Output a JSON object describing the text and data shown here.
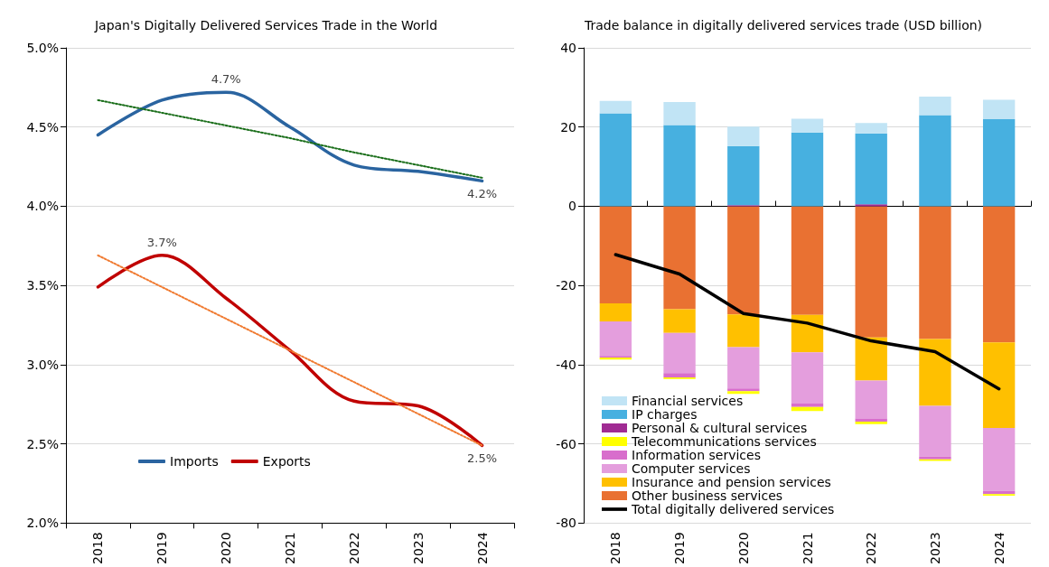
{
  "chart_data": [
    {
      "type": "line",
      "title": "Japan's Digitally Delivered Services Trade in the World",
      "categories": [
        "2018",
        "2019",
        "2020",
        "2021",
        "2022",
        "2023",
        "2024"
      ],
      "series": [
        {
          "name": "Imports",
          "color": "#2a64a0",
          "values": [
            4.45,
            4.67,
            4.72,
            4.5,
            4.26,
            4.22,
            4.16
          ],
          "value_labels": [
            null,
            null,
            "4.7%",
            null,
            null,
            null,
            "4.2%"
          ]
        },
        {
          "name": "Exports",
          "color": "#c00000",
          "values": [
            3.49,
            3.69,
            3.42,
            3.09,
            2.77,
            2.74,
            2.49
          ],
          "value_labels": [
            null,
            "3.7%",
            null,
            null,
            null,
            null,
            "2.5%"
          ]
        },
        {
          "color": "#1a6e1a",
          "line_style": "dotted",
          "values": [
            4.67,
            4.59,
            4.51,
            4.43,
            4.34,
            4.26,
            4.18
          ]
        },
        {
          "color": "#f07a30",
          "line_style": "dotted",
          "values": [
            3.69,
            3.49,
            3.29,
            3.09,
            2.89,
            2.69,
            2.49
          ]
        }
      ],
      "ylim": [
        2,
        5
      ],
      "yticks": [
        {
          "value": 2,
          "label": "2.0%"
        },
        {
          "value": 2.5,
          "label": "2.5%"
        },
        {
          "value": 3,
          "label": "3.0%"
        },
        {
          "value": 3.5,
          "label": "3.5%"
        },
        {
          "value": 4,
          "label": "4.0%"
        },
        {
          "value": 4.5,
          "label": "4.5%"
        },
        {
          "value": 5,
          "label": "5.0%"
        }
      ],
      "grid": "y",
      "legend": "bottom left",
      "marker": "none"
    },
    {
      "type": "bar",
      "title": "Trade balance in digitally delivered services trade (USD billion)",
      "stacked": true,
      "categories": [
        "2018",
        "2019",
        "2020",
        "2021",
        "2022",
        "2023",
        "2024"
      ],
      "series": [
        {
          "name": "Other business services",
          "color": "#e97132",
          "values": [
            -24.5,
            -26.0,
            -27.3,
            -27.4,
            -33.1,
            -33.5,
            -34.4
          ]
        },
        {
          "name": "Insurance and pension services",
          "color": "#ffc000",
          "values": [
            -4.6,
            -6.0,
            -8.3,
            -9.5,
            -10.9,
            -16.9,
            -21.6
          ]
        },
        {
          "name": "Computer services",
          "color": "#e49edd",
          "values": [
            -8.7,
            -10.1,
            -10.4,
            -12.9,
            -9.6,
            -12.8,
            -15.9
          ]
        },
        {
          "name": "Information services",
          "color": "#d86ecc",
          "values": [
            -0.4,
            -1.1,
            -0.7,
            -0.9,
            -0.8,
            -0.7,
            -0.8
          ]
        },
        {
          "name": "Telecommunications services",
          "color": "#ffff00",
          "values": [
            -0.5,
            -0.4,
            -0.7,
            -1.0,
            -0.6,
            -0.4,
            -0.4
          ]
        },
        {
          "name": "Personal & cultural services",
          "color": "#a02b93",
          "values": [
            0,
            0,
            0.3,
            0,
            0.5,
            0,
            0
          ]
        },
        {
          "name": "IP charges",
          "color": "#47b0e0",
          "values": [
            23.5,
            20.5,
            14.9,
            18.6,
            17.9,
            23.0,
            22.0
          ]
        },
        {
          "name": "Financial services",
          "color": "#c1e4f5",
          "values": [
            3.1,
            5.8,
            4.9,
            3.5,
            2.6,
            4.7,
            4.9
          ]
        },
        {
          "name": "Total digitally delivered services",
          "type": "line",
          "color": "#000000",
          "values": [
            -12.2,
            -17.1,
            -27.1,
            -29.5,
            -34.0,
            -36.7,
            -46.1
          ]
        }
      ],
      "ylim": [
        -80,
        40
      ],
      "yticks": [
        -80,
        -60,
        -40,
        -20,
        0,
        20,
        40
      ],
      "grid": "y",
      "legend": "bottom left",
      "marker": "none"
    }
  ]
}
